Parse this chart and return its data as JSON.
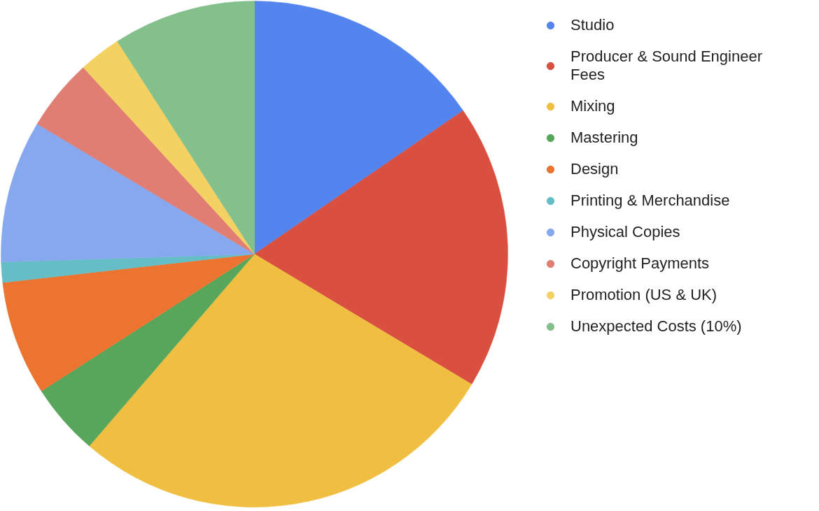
{
  "chart_data": {
    "type": "pie",
    "categories": [
      "Studio",
      "Producer & Sound Engineer Fees",
      "Mixing",
      "Mastering",
      "Design",
      "Printing & Merchandise",
      "Physical Copies",
      "Copyright Payments",
      "Promotion (US & UK)",
      "Unexpected Costs (10%)"
    ],
    "values": [
      15.4,
      18.2,
      27.7,
      4.6,
      7.3,
      1.3,
      9.1,
      4.6,
      2.7,
      9.1
    ],
    "colors": [
      "#5484ed",
      "#d95040",
      "#f0bf42",
      "#58a65c",
      "#ec7430",
      "#65bdc6",
      "#86a8ef",
      "#e17e74",
      "#f4d163",
      "#83c08b"
    ],
    "legend": "top right"
  }
}
